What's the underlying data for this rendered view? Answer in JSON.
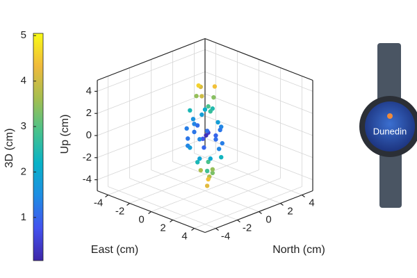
{
  "chart_data": {
    "type": "scatter3d",
    "xlabel": "East (cm)",
    "ylabel": "North (cm)",
    "zlabel": "Up (cm)",
    "xlim": [
      -5,
      5
    ],
    "ylim": [
      -5,
      5
    ],
    "zlim": [
      -5,
      5
    ],
    "xticks": [
      -4,
      -2,
      0,
      2,
      4
    ],
    "yticks": [
      -4,
      -2,
      0,
      2,
      4
    ],
    "zticks": [
      -4,
      -2,
      0,
      2,
      4
    ],
    "grid": true,
    "series": [
      {
        "x": [
          0.2,
          -0.5,
          0.6,
          -0.3,
          0.8,
          -0.9,
          0.1,
          0.4,
          -0.6,
          1.0,
          -1.1,
          0.3,
          -0.2,
          0.7,
          -0.8,
          0.5,
          -0.4,
          0.9,
          -1.0,
          1.1,
          0.0,
          -0.7,
          0.2,
          -0.5,
          0.6,
          -0.1,
          0.3,
          -0.6,
          0.4,
          -0.2,
          0.1,
          -0.8,
          0.7,
          -0.3,
          0.5,
          -0.4,
          0.9,
          -0.9,
          0.2,
          -0.1,
          1.2,
          -1.2,
          0.3,
          -0.5,
          0.8
        ],
        "y": [
          0.1,
          0.3,
          -0.4,
          -0.7,
          0.5,
          0.2,
          0.9,
          -0.9,
          0.6,
          0.2,
          -0.3,
          0.4,
          -0.5,
          0.8,
          -0.6,
          -0.2,
          0.7,
          -0.7,
          0.5,
          -0.1,
          -1.0,
          -0.9,
          0.6,
          -0.3,
          0.1,
          0.8,
          -0.6,
          0.2,
          0.5,
          -0.4,
          0.3,
          0.4,
          -0.5,
          0.6,
          0.0,
          0.1,
          0.6,
          -0.8,
          -0.3,
          0.2,
          0.4,
          0.1,
          1.1,
          -1.1,
          -0.3
        ],
        "z": [
          0.3,
          -0.6,
          0.8,
          1.2,
          -1.1,
          0.5,
          -0.3,
          -1.6,
          1.9,
          1.5,
          -1.4,
          2.4,
          -2.3,
          -2.0,
          2.2,
          2.9,
          -2.8,
          -2.6,
          -0.9,
          0.1,
          0.7,
          -0.2,
          3.3,
          3.5,
          -3.2,
          -3.4,
          3.9,
          4.1,
          4.4,
          4.6,
          -3.8,
          -3.6,
          -4.1,
          -4.3,
          -1.9,
          1.7,
          0.9,
          0.6,
          -0.9,
          -0.1,
          -0.4,
          1.0,
          0.2,
          -0.7,
          2.6
        ],
        "c": [
          0.4,
          0.8,
          1.1,
          1.4,
          1.4,
          1.1,
          1.0,
          1.9,
          2.1,
          1.8,
          1.8,
          2.5,
          2.4,
          2.3,
          2.4,
          2.9,
          2.9,
          2.8,
          1.4,
          1.1,
          1.2,
          1.2,
          3.4,
          3.5,
          3.3,
          3.5,
          4.0,
          4.1,
          4.4,
          4.6,
          3.8,
          3.7,
          4.2,
          4.4,
          2.0,
          1.8,
          1.4,
          1.3,
          1.0,
          0.2,
          1.3,
          1.6,
          1.2,
          1.4,
          2.7
        ]
      }
    ],
    "colorbar": {
      "label": "3D (cm)",
      "clim": [
        0.05,
        5.05
      ],
      "ticks": [
        1,
        2,
        3,
        4,
        5
      ],
      "colormap": [
        "#3e26a8",
        "#4352ef",
        "#1e8de3",
        "#08b2c7",
        "#49c28b",
        "#a5be4f",
        "#f0ba3c",
        "#f9fb15"
      ]
    }
  },
  "watch": {
    "city": "Dunedin"
  }
}
